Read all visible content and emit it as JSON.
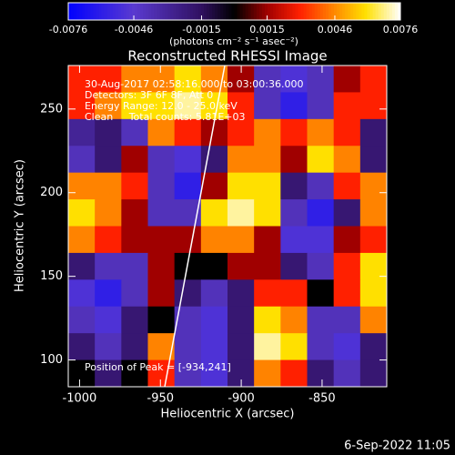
{
  "chart_data": {
    "type": "heatmap",
    "title": "Reconstructed RHESSI Image",
    "xlabel": "Heliocentric X (arcsec)",
    "ylabel": "Heliocentric Y (arcsec)",
    "xlim": [
      -1007,
      -810
    ],
    "xticks": [
      -1000,
      -950,
      -900,
      -850
    ],
    "ylim": [
      84,
      276
    ],
    "yticks": [
      100,
      150,
      200,
      250
    ],
    "colorbar": {
      "label": "(photons cm⁻² s⁻¹ asec⁻²)",
      "lim": [
        -0.0076,
        0.0076
      ],
      "ticks": [
        -0.0076,
        -0.0046,
        -0.0015,
        0.0015,
        0.0046,
        0.0076
      ]
    },
    "colormap": [
      {
        "at": -0.0076,
        "color": "#0000ff"
      },
      {
        "at": -0.0046,
        "color": "#5a3ad0"
      },
      {
        "at": -0.0015,
        "color": "#301060"
      },
      {
        "at": 0,
        "color": "#000000"
      },
      {
        "at": 0.0015,
        "color": "#a00000"
      },
      {
        "at": 0.003,
        "color": "#ff2000"
      },
      {
        "at": 0.0046,
        "color": "#ff8a00"
      },
      {
        "at": 0.006,
        "color": "#ffe000"
      },
      {
        "at": 0.0076,
        "color": "#ffffff"
      }
    ],
    "annotations": [
      "30-Aug-2017 02:58:16.000 to 03:00:36.000",
      "Detectors: 3F 6F 8F, Att 0",
      "Energy Range: 12.0 - 25.0 keV",
      "Clean     Total counts: 5.81E+03",
      "Position of Peak = [-934,241]"
    ],
    "footer": "6-Sep-2022 11:05",
    "z": [
      [
        0.003,
        0.003,
        0.0045,
        0.0045,
        0.006,
        0.0045,
        0.0015,
        -0.004,
        -0.005,
        -0.004,
        0.0015,
        0.003
      ],
      [
        0.003,
        0.0045,
        0.006,
        0.006,
        0.007,
        0.006,
        0.003,
        -0.004,
        -0.006,
        -0.004,
        0.003,
        0.003
      ],
      [
        -0.003,
        -0.002,
        -0.004,
        0.0045,
        0.003,
        0.0015,
        0.003,
        0.0045,
        0.003,
        0.0045,
        0.003,
        -0.002
      ],
      [
        -0.004,
        -0.002,
        0.0015,
        -0.004,
        -0.005,
        -0.002,
        0.0045,
        0.0045,
        0.0015,
        0.006,
        0.0045,
        -0.002
      ],
      [
        0.0045,
        0.0045,
        0.003,
        -0.004,
        -0.006,
        0.0015,
        0.006,
        0.006,
        -0.002,
        -0.004,
        0.003,
        0.0045
      ],
      [
        0.006,
        0.0045,
        0.0015,
        -0.004,
        -0.004,
        0.006,
        0.007,
        0.006,
        -0.004,
        -0.006,
        -0.002,
        0.0045
      ],
      [
        0.0045,
        0.003,
        0.0015,
        0.0015,
        0.0015,
        0.0045,
        0.0045,
        0.0015,
        -0.005,
        -0.005,
        0.0015,
        0.003
      ],
      [
        -0.002,
        -0.004,
        -0.004,
        0.0015,
        0,
        0,
        0.0015,
        0.0015,
        -0.002,
        -0.004,
        0.003,
        0.006
      ],
      [
        -0.005,
        -0.006,
        -0.004,
        0.0015,
        -0.002,
        -0.004,
        -0.002,
        0.003,
        0.003,
        0,
        0.003,
        0.006
      ],
      [
        -0.004,
        -0.005,
        -0.002,
        0,
        -0.004,
        -0.005,
        -0.002,
        0.006,
        0.0045,
        -0.004,
        -0.004,
        0.0045
      ],
      [
        -0.002,
        -0.004,
        -0.002,
        0.0045,
        -0.004,
        -0.005,
        -0.002,
        0.007,
        0.006,
        -0.004,
        -0.005,
        -0.002
      ],
      [
        0,
        -0.002,
        0,
        0.003,
        -0.004,
        -0.005,
        -0.002,
        0.0045,
        0.003,
        -0.002,
        -0.004,
        -0.002
      ]
    ]
  }
}
